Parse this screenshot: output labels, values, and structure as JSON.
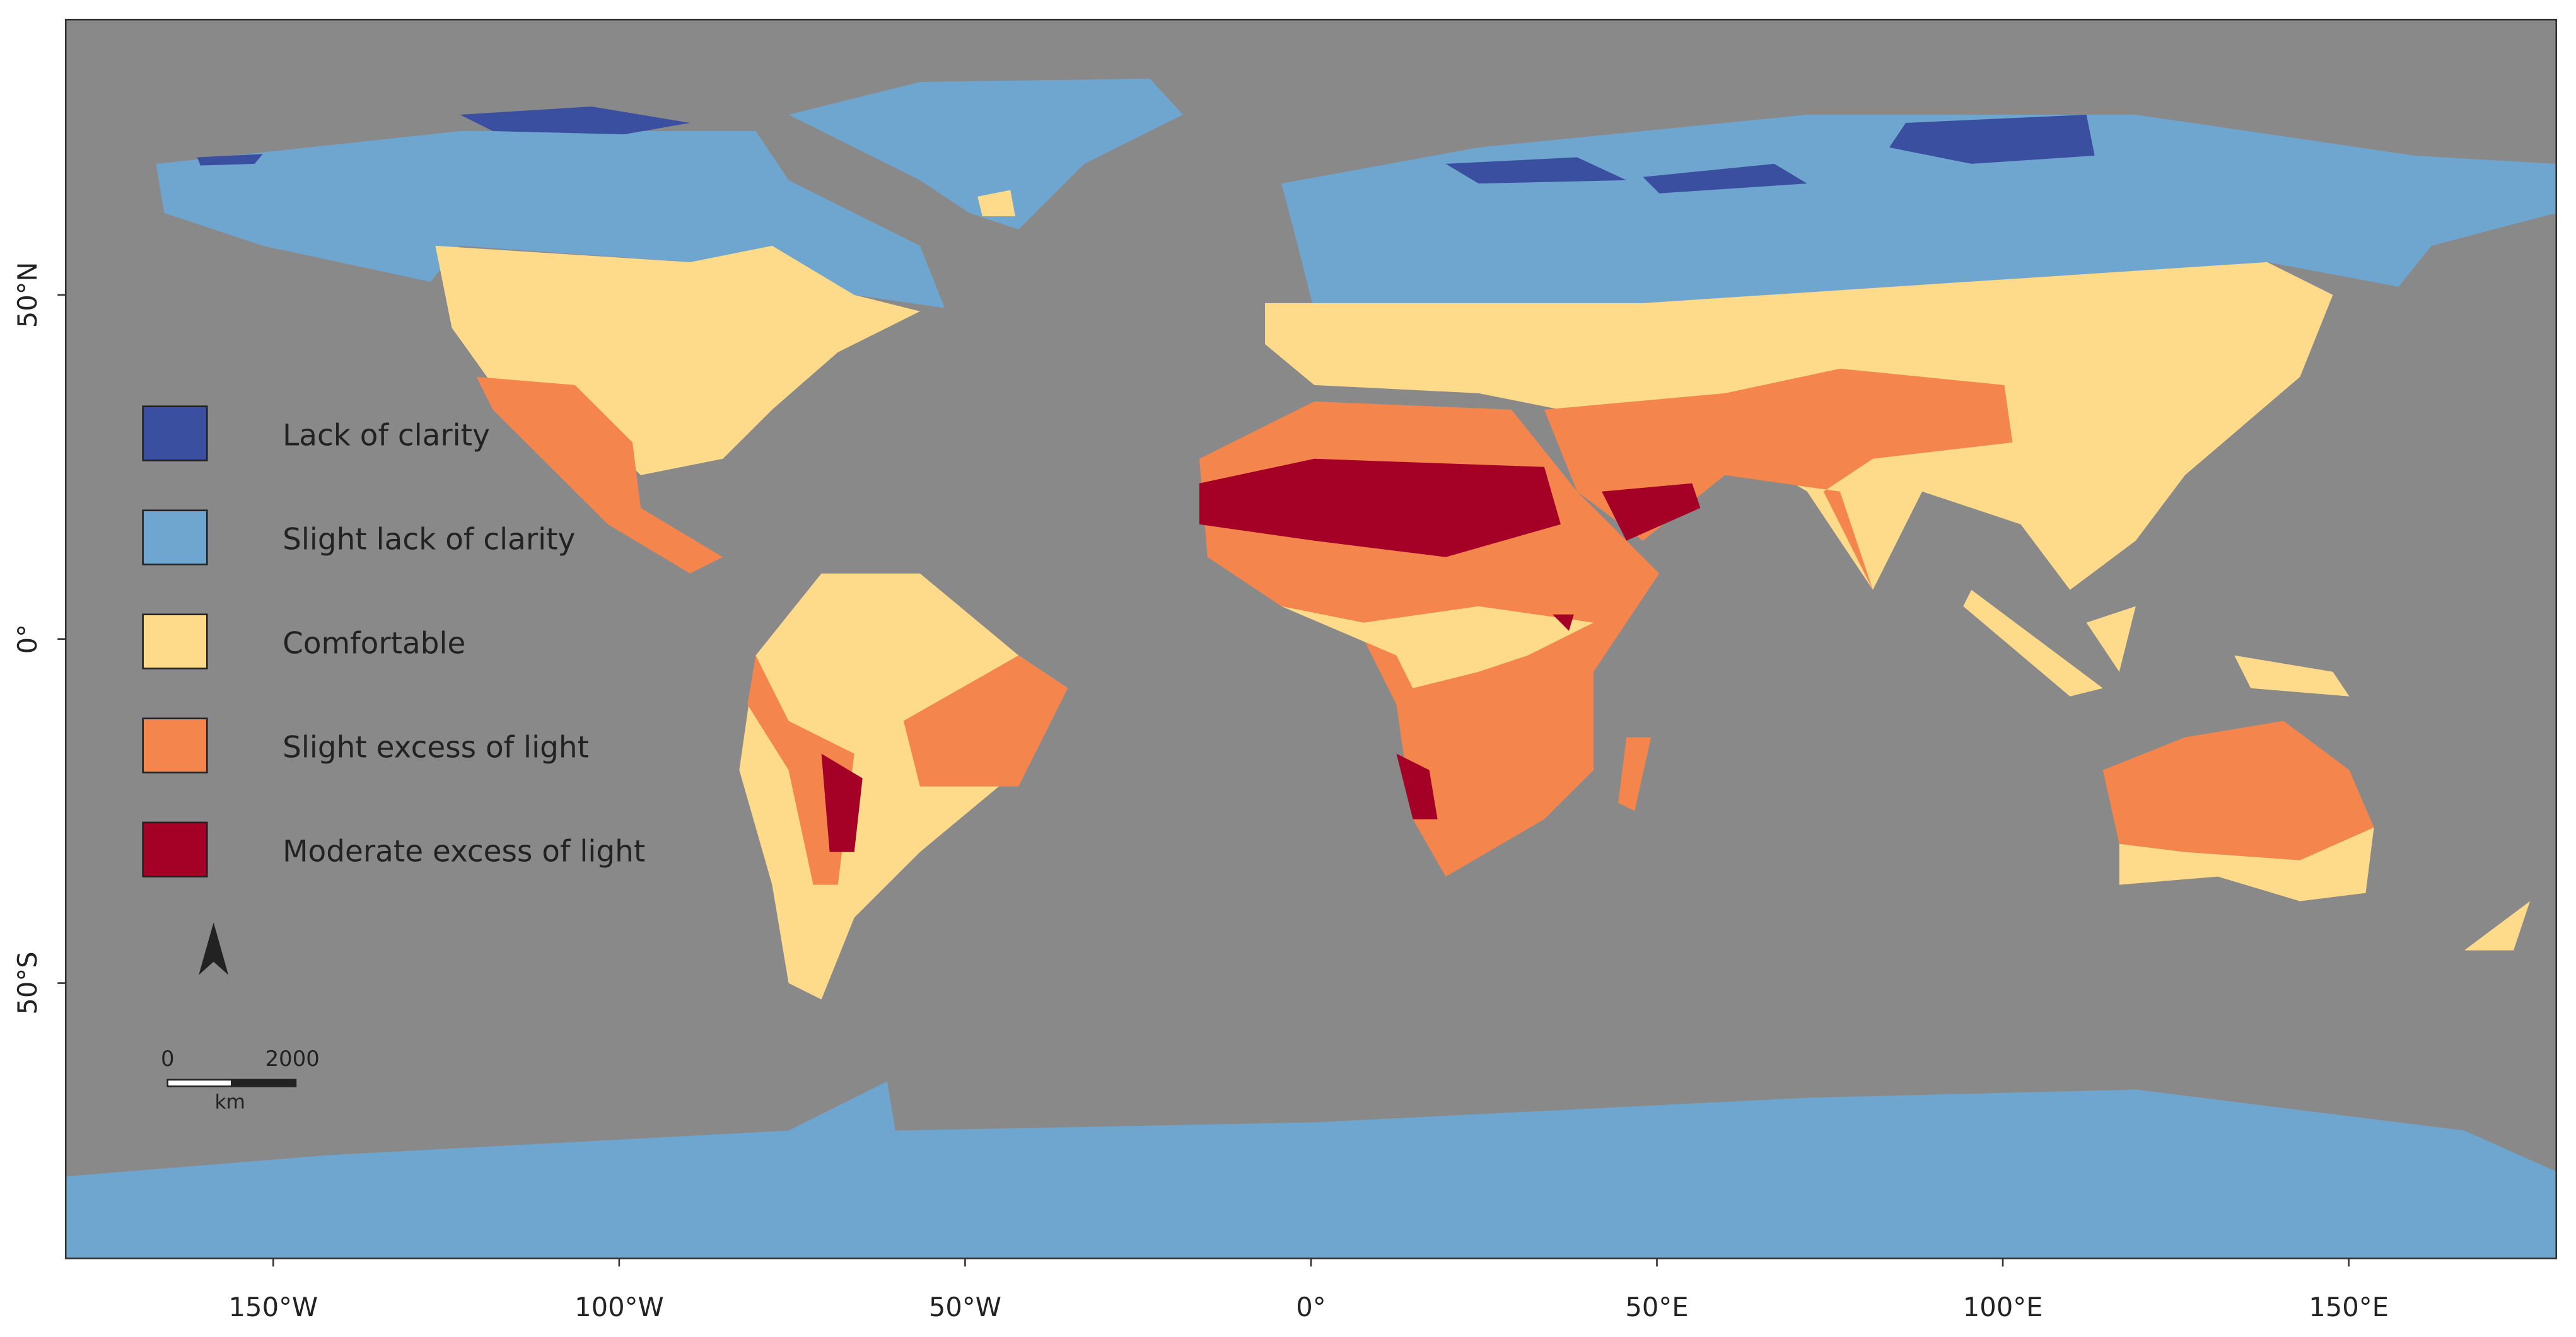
{
  "map": {
    "xlim": [
      -180,
      180
    ],
    "ylim": [
      -90,
      90
    ],
    "xticks": [
      {
        "value": -150,
        "label": "150°W"
      },
      {
        "value": -100,
        "label": "100°W"
      },
      {
        "value": -50,
        "label": "50°W"
      },
      {
        "value": 0,
        "label": "0°"
      },
      {
        "value": 50,
        "label": "50°E"
      },
      {
        "value": 100,
        "label": "100°E"
      },
      {
        "value": 150,
        "label": "150°E"
      }
    ],
    "yticks": [
      {
        "value": 50,
        "label": "50°N"
      },
      {
        "value": 0,
        "label": "0°"
      },
      {
        "value": -50,
        "label": "50°S"
      }
    ]
  },
  "legend": [
    {
      "label": "Lack of clarity",
      "color": "#3a4fa0"
    },
    {
      "label": "Slight lack of clarity",
      "color": "#6fa6cf"
    },
    {
      "label": "Comfortable",
      "color": "#fedb8b"
    },
    {
      "label": "Slight excess of light",
      "color": "#f4854c"
    },
    {
      "label": "Moderate excess of light",
      "color": "#a50026"
    }
  ],
  "scale_bar": {
    "labels": [
      "0",
      "2000"
    ],
    "unit": "km"
  }
}
